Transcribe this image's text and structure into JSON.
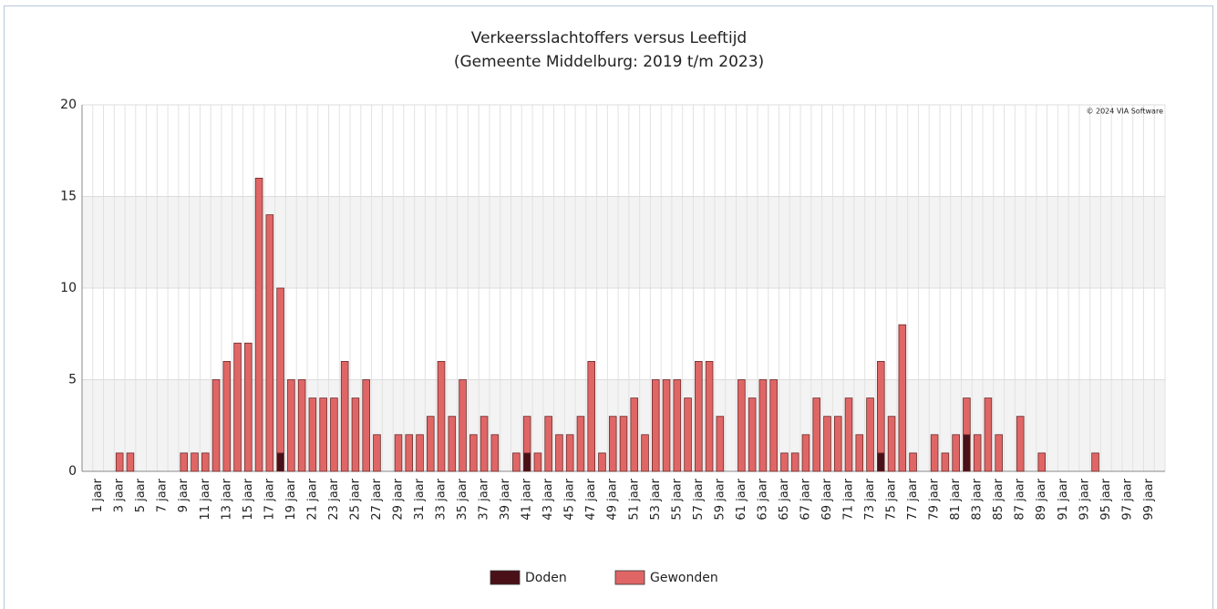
{
  "chart_data": {
    "type": "stacked_bar",
    "title": "Verkeersslachtoffers versus Leeftijd",
    "subtitle": "(Gemeente Middelburg: 2019 t/m 2023)",
    "credit": "© 2024 VIA Software",
    "categories": [
      null,
      "1 jaar",
      null,
      "3 jaar",
      null,
      "5 jaar",
      null,
      "7 jaar",
      null,
      "9 jaar",
      null,
      "11 jaar",
      null,
      "13 jaar",
      null,
      "15 jaar",
      null,
      "17 jaar",
      null,
      "19 jaar",
      null,
      "21 jaar",
      null,
      "23 jaar",
      null,
      "25 jaar",
      null,
      "27 jaar",
      null,
      "29 jaar",
      null,
      "31 jaar",
      null,
      "33 jaar",
      null,
      "35 jaar",
      null,
      "37 jaar",
      null,
      "39 jaar",
      null,
      "41 jaar",
      null,
      "43 jaar",
      null,
      "45 jaar",
      null,
      "47 jaar",
      null,
      "49 jaar",
      null,
      "51 jaar",
      null,
      "53 jaar",
      null,
      "55 jaar",
      null,
      "57 jaar",
      null,
      "59 jaar",
      null,
      "61 jaar",
      null,
      "63 jaar",
      null,
      "65 jaar",
      null,
      "67 jaar",
      null,
      "69 jaar",
      null,
      "71 jaar",
      null,
      "73 jaar",
      null,
      "75 jaar",
      null,
      "77 jaar",
      null,
      "79 jaar",
      null,
      "81 jaar",
      null,
      "83 jaar",
      null,
      "85 jaar",
      null,
      "87 jaar",
      null,
      "89 jaar",
      null,
      "91 jaar",
      null,
      "93 jaar",
      null,
      "95 jaar",
      null,
      "97 jaar",
      null,
      "99 jaar",
      null
    ],
    "series": [
      {
        "name": "Doden",
        "color": "#4a1018",
        "values": [
          0,
          0,
          0,
          0,
          0,
          0,
          0,
          0,
          0,
          0,
          0,
          0,
          0,
          0,
          0,
          0,
          0,
          0,
          1,
          0,
          0,
          0,
          0,
          0,
          0,
          0,
          0,
          0,
          0,
          0,
          0,
          0,
          0,
          0,
          0,
          0,
          0,
          0,
          0,
          0,
          0,
          1,
          0,
          0,
          0,
          0,
          0,
          0,
          0,
          0,
          0,
          0,
          0,
          0,
          0,
          0,
          0,
          0,
          0,
          0,
          0,
          0,
          0,
          0,
          0,
          0,
          0,
          0,
          0,
          0,
          0,
          0,
          0,
          0,
          1,
          0,
          0,
          0,
          0,
          0,
          0,
          0,
          2,
          0,
          0,
          0,
          0,
          0,
          0,
          0,
          0,
          0,
          0,
          0,
          0,
          0,
          0,
          0,
          0,
          0,
          0
        ]
      },
      {
        "name": "Gewonden",
        "color": "#e06666",
        "values": [
          0,
          0,
          0,
          1,
          1,
          0,
          0,
          0,
          0,
          1,
          1,
          1,
          5,
          6,
          7,
          7,
          16,
          14,
          9,
          5,
          5,
          4,
          4,
          4,
          6,
          4,
          5,
          2,
          0,
          2,
          2,
          2,
          3,
          6,
          3,
          5,
          2,
          3,
          2,
          0,
          1,
          2,
          1,
          3,
          2,
          2,
          3,
          6,
          1,
          3,
          3,
          4,
          2,
          5,
          5,
          5,
          4,
          6,
          6,
          3,
          0,
          5,
          4,
          5,
          5,
          1,
          1,
          2,
          4,
          3,
          3,
          4,
          2,
          4,
          5,
          3,
          8,
          1,
          0,
          2,
          1,
          2,
          2,
          2,
          4,
          2,
          0,
          3,
          0,
          1,
          0,
          0,
          0,
          0,
          1,
          0,
          0,
          0,
          0,
          0,
          0
        ]
      }
    ],
    "ylim": [
      0,
      20
    ],
    "yticks": [
      0,
      5,
      10,
      15,
      20
    ],
    "grid": true,
    "legend": "bottom"
  }
}
